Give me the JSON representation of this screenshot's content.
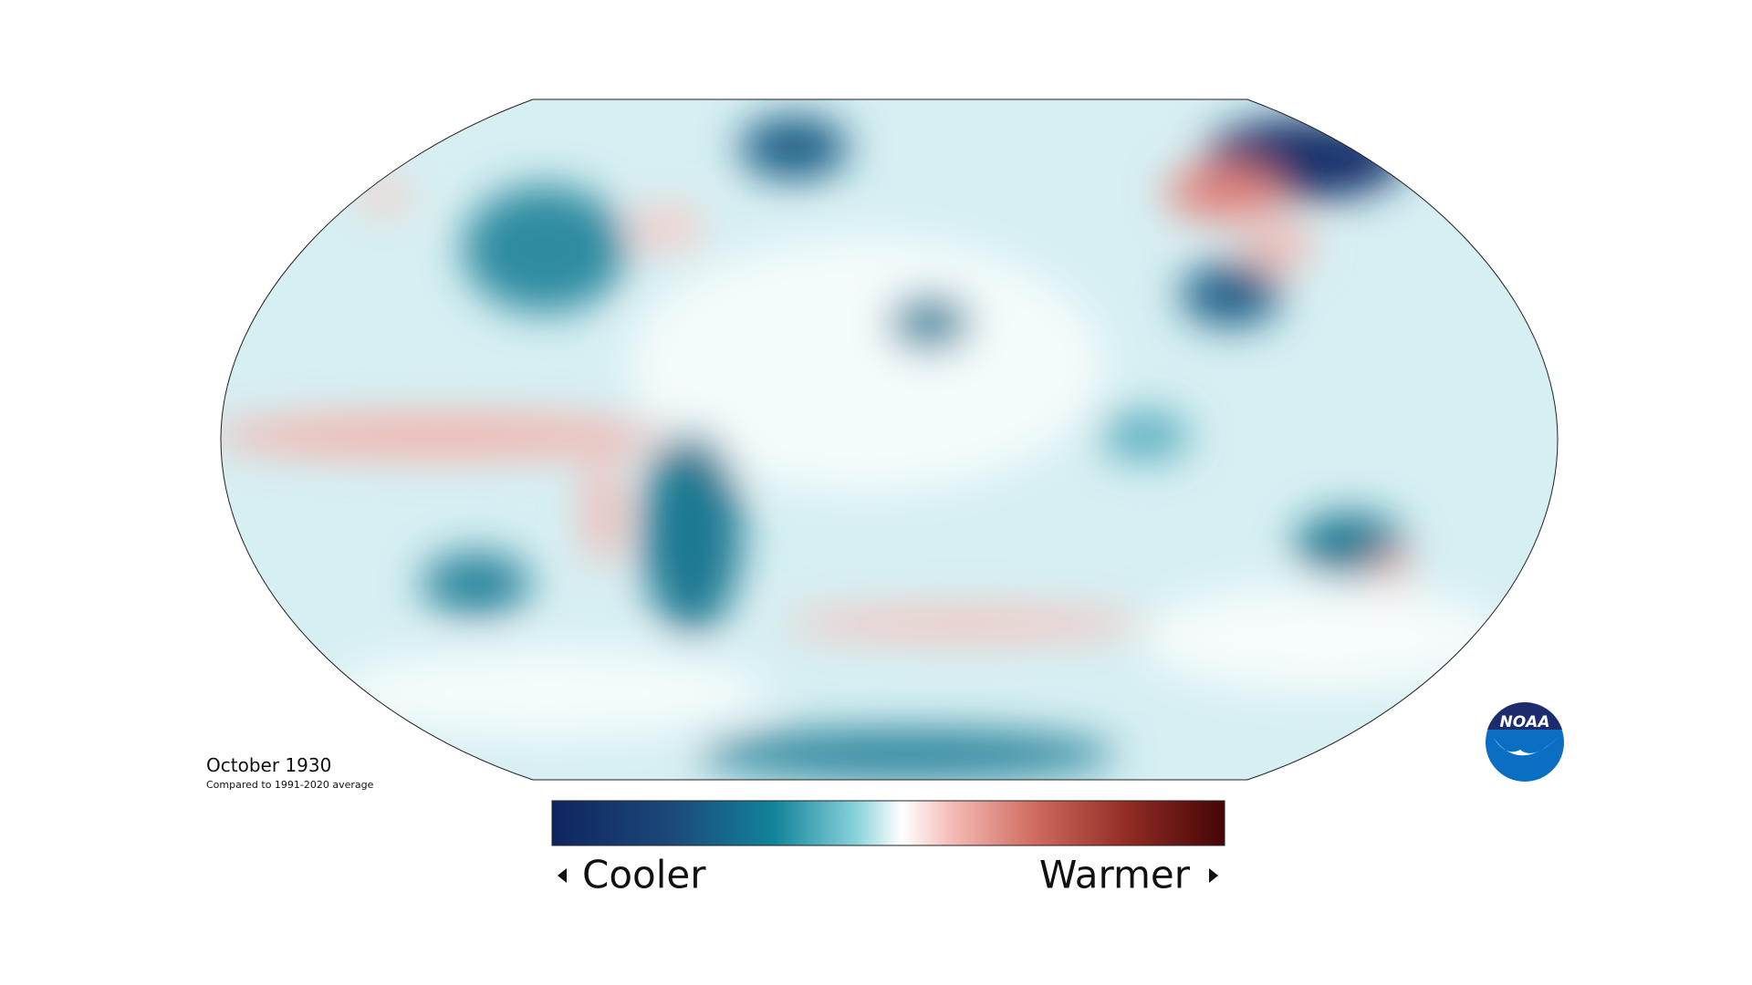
{
  "map": {
    "title": "October 1930",
    "subtitle": "Compared to 1991-2020 average",
    "legend": {
      "low_label": "Cooler",
      "high_label": "Warmer"
    }
  },
  "logo": {
    "text": "NOAA"
  }
}
